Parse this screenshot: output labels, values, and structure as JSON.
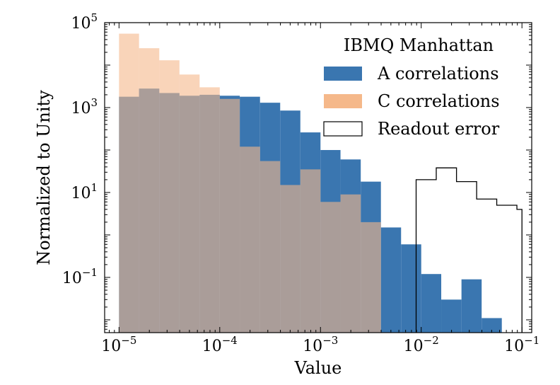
{
  "chart_data": {
    "type": "bar",
    "xlabel": "Value",
    "ylabel": "Normalized to Unity",
    "x_scale": "log",
    "y_scale": "log",
    "xlim": [
      7.2e-06,
      0.125
    ],
    "ylim": [
      0.005,
      100000
    ],
    "x_ticks": [
      {
        "value": 1e-05,
        "base": "10",
        "exp": "−5"
      },
      {
        "value": 0.0001,
        "base": "10",
        "exp": "−4"
      },
      {
        "value": 0.001,
        "base": "10",
        "exp": "−3"
      },
      {
        "value": 0.01,
        "base": "10",
        "exp": "−2"
      },
      {
        "value": 0.1,
        "base": "10",
        "exp": "−1"
      }
    ],
    "y_ticks": [
      {
        "value": 0.1,
        "base": "10",
        "exp": "−1"
      },
      {
        "value": 10,
        "base": "10",
        "exp": "1"
      },
      {
        "value": 1000,
        "base": "10",
        "exp": "3"
      },
      {
        "value": 100000,
        "base": "10",
        "exp": "5"
      }
    ],
    "legend": {
      "title": "IBMQ Manhattan",
      "position": "top-right",
      "entries": [
        "A correlations",
        "C correlations",
        "Readout error"
      ]
    },
    "series": [
      {
        "name": "A correlations",
        "color": "#3a76b0",
        "style": "filled",
        "bin_edges": [
          1e-05,
          1.58e-05,
          2.51e-05,
          3.98e-05,
          6.31e-05,
          0.0001,
          0.000158,
          0.000251,
          0.000398,
          0.000631,
          0.001,
          0.00158,
          0.00251,
          0.00398,
          0.00631,
          0.01,
          0.0158,
          0.0251,
          0.0398,
          0.0631
        ],
        "values": [
          1800,
          2800,
          2200,
          1900,
          2000,
          1900,
          1800,
          1300,
          850,
          260,
          100,
          60,
          18,
          1.5,
          0.6,
          0.12,
          0.03,
          0.09,
          0.011
        ]
      },
      {
        "name": "C correlations",
        "color": "#f5b88a",
        "style": "filled",
        "bin_edges": [
          1e-05,
          1.58e-05,
          2.51e-05,
          3.98e-05,
          6.31e-05,
          0.0001,
          0.000158,
          0.000251,
          0.000398,
          0.000631,
          0.001,
          0.00158,
          0.00251,
          0.00398
        ],
        "values": [
          55000,
          25000,
          13000,
          6000,
          3000,
          1600,
          120,
          55,
          15,
          35,
          6,
          9,
          2
        ]
      },
      {
        "name": "Readout error",
        "color": "#000000",
        "style": "step",
        "bin_edges": [
          0.0089,
          0.0141,
          0.0224,
          0.0355,
          0.0562,
          0.0891,
          0.1
        ],
        "values": [
          20,
          38,
          18,
          7,
          5,
          4
        ]
      }
    ]
  }
}
